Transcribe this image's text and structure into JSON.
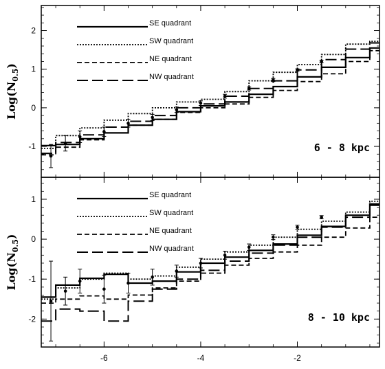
{
  "chart_data": [
    {
      "type": "line",
      "title": "",
      "xlabel": "",
      "ylabel": "Log(N",
      "ylabel_sub": "0.5",
      "xlim": [
        -7.3,
        -0.3
      ],
      "ylim": [
        -1.8,
        2.65
      ],
      "yticks": [
        -1,
        0,
        1,
        2
      ],
      "xticks": [
        -6,
        -4,
        -2
      ],
      "xtick_labels": [
        "-6",
        "-4",
        "-2"
      ],
      "ytick_labels": [
        "-1",
        "0",
        "1",
        "2"
      ],
      "annotation": "6 - 8 kpc",
      "legend_placement": "top-left",
      "bin_edges": [
        -7.3,
        -7.0,
        -6.5,
        -6.0,
        -5.5,
        -5.0,
        -4.5,
        -4.0,
        -3.5,
        -3.0,
        -2.5,
        -2.0,
        -1.5,
        -1.0,
        -0.5,
        -0.3
      ],
      "series": [
        {
          "name": "SE quadrant",
          "style": "solid",
          "values": [
            -0.98,
            -0.95,
            -0.8,
            -0.65,
            -0.45,
            -0.3,
            -0.1,
            0.05,
            0.15,
            0.35,
            0.55,
            0.8,
            1.05,
            1.3,
            1.55,
            1.75
          ]
        },
        {
          "name": "SW quadrant",
          "style": "dotted",
          "values": [
            -1.05,
            -0.72,
            -0.52,
            -0.32,
            -0.15,
            0.0,
            0.15,
            0.22,
            0.42,
            0.7,
            0.92,
            1.12,
            1.38,
            1.65,
            1.72
          ]
        },
        {
          "name": "NE quadrant",
          "style": "dashed",
          "values": [
            -1.22,
            -1.02,
            -0.83,
            -0.65,
            -0.45,
            -0.3,
            -0.12,
            0.0,
            0.1,
            0.27,
            0.45,
            0.68,
            0.88,
            1.2,
            1.48,
            1.65
          ]
        },
        {
          "name": "NW quadrant",
          "style": "longdash",
          "values": [
            -1.18,
            -0.9,
            -0.7,
            -0.5,
            -0.35,
            -0.2,
            0.0,
            0.1,
            0.3,
            0.5,
            0.7,
            0.98,
            1.25,
            1.52,
            1.68
          ]
        }
      ],
      "error_points": [
        {
          "x": -7.1,
          "y": -1.25,
          "err": 0.3
        },
        {
          "x": -6.8,
          "y": -0.92,
          "err": 0.2
        },
        {
          "x": -6.5,
          "y": -0.75,
          "err": 0.15
        },
        {
          "x": -6.0,
          "y": -0.62,
          "err": 0.12
        },
        {
          "x": -5.5,
          "y": -0.4,
          "err": 0.1
        },
        {
          "x": -5.0,
          "y": -0.25,
          "err": 0.08
        },
        {
          "x": -4.5,
          "y": -0.05,
          "err": 0.07
        },
        {
          "x": -4.0,
          "y": 0.12,
          "err": 0.06
        },
        {
          "x": -3.5,
          "y": 0.3,
          "err": 0.05
        },
        {
          "x": -3.0,
          "y": 0.5,
          "err": 0.04
        },
        {
          "x": -2.5,
          "y": 0.72,
          "err": 0.04
        },
        {
          "x": -2.0,
          "y": 0.98,
          "err": 0.03
        },
        {
          "x": -1.5,
          "y": 1.2,
          "err": 0.03
        }
      ]
    },
    {
      "type": "line",
      "title": "",
      "xlabel": "",
      "ylabel": "Log(N",
      "ylabel_sub": "0.5",
      "xlim": [
        -7.3,
        -0.3
      ],
      "ylim": [
        -2.7,
        1.55
      ],
      "yticks": [
        -2,
        -1,
        0,
        1
      ],
      "xticks": [
        -6,
        -4,
        -2
      ],
      "xtick_labels": [
        "-6",
        "-4",
        "-2"
      ],
      "ytick_labels": [
        "-2",
        "-1",
        "0",
        "1"
      ],
      "annotation": "8 - 10 kpc",
      "legend_placement": "top-left",
      "bin_edges": [
        -7.3,
        -7.0,
        -6.5,
        -6.0,
        -5.5,
        -5.0,
        -4.5,
        -4.0,
        -3.5,
        -3.0,
        -2.5,
        -2.0,
        -1.5,
        -1.0,
        -0.5,
        -0.3
      ],
      "series": [
        {
          "name": "SE quadrant",
          "style": "solid",
          "values": [
            -1.45,
            -1.15,
            -0.98,
            -0.88,
            -1.1,
            -1.05,
            -0.82,
            -0.6,
            -0.45,
            -0.28,
            -0.12,
            0.1,
            0.32,
            0.6,
            0.88,
            1.15,
            1.38
          ]
        },
        {
          "name": "SW quadrant",
          "style": "dotted",
          "values": [
            -1.5,
            -1.22,
            -1.0,
            -0.85,
            -1.0,
            -0.92,
            -0.7,
            -0.5,
            -0.32,
            -0.15,
            0.05,
            0.25,
            0.45,
            0.68,
            0.95,
            1.15,
            1.35
          ]
        },
        {
          "name": "NE quadrant",
          "style": "dashed",
          "values": [
            -1.6,
            -1.5,
            -1.42,
            -1.5,
            -1.4,
            -1.22,
            -1.05,
            -0.85,
            -0.65,
            -0.48,
            -0.32,
            -0.15,
            0.05,
            0.28,
            0.55,
            0.85,
            1.1,
            1.32
          ]
        },
        {
          "name": "NW quadrant",
          "style": "longdash",
          "values": [
            -2.05,
            -1.75,
            -1.8,
            -2.05,
            -1.55,
            -1.25,
            -1.0,
            -0.78,
            -0.55,
            -0.35,
            -0.15,
            0.05,
            0.3,
            0.55,
            0.85,
            1.1,
            1.3
          ]
        }
      ],
      "error_points": [
        {
          "x": -7.1,
          "y": -1.55,
          "err": 1.0
        },
        {
          "x": -6.8,
          "y": -1.3,
          "err": 0.35
        },
        {
          "x": -6.5,
          "y": -1.05,
          "err": 0.3
        },
        {
          "x": -6.0,
          "y": -1.25,
          "err": 0.35
        },
        {
          "x": -5.5,
          "y": -1.1,
          "err": 0.25
        },
        {
          "x": -5.0,
          "y": -0.95,
          "err": 0.2
        },
        {
          "x": -4.5,
          "y": -0.8,
          "err": 0.15
        },
        {
          "x": -4.0,
          "y": -0.6,
          "err": 0.12
        },
        {
          "x": -3.5,
          "y": -0.4,
          "err": 0.1
        },
        {
          "x": -3.0,
          "y": -0.2,
          "err": 0.08
        },
        {
          "x": -2.5,
          "y": 0.05,
          "err": 0.06
        },
        {
          "x": -2.0,
          "y": 0.3,
          "err": 0.05
        },
        {
          "x": -1.5,
          "y": 0.55,
          "err": 0.04
        }
      ]
    }
  ]
}
